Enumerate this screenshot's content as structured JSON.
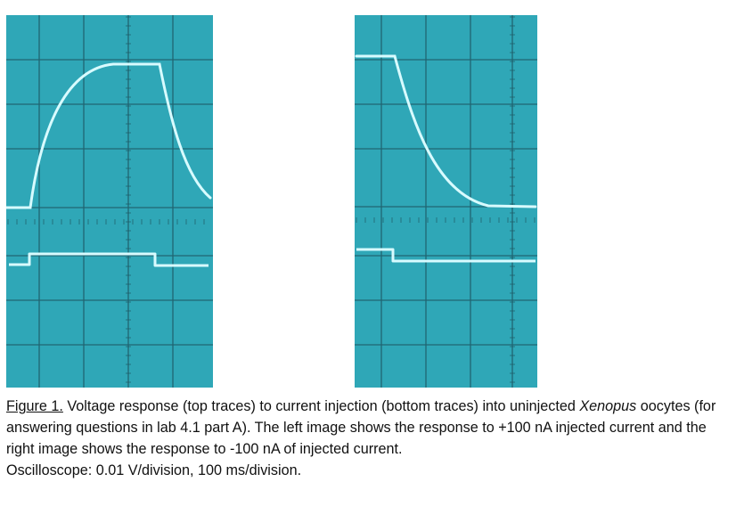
{
  "figure": {
    "label": "Figure 1.",
    "caption_part1": " Voltage response (top traces) to current injection (bottom traces) into uninjected ",
    "species": "Xenopus",
    "caption_part2": " oocytes (for answering questions in lab 4.1 part A). The left image shows the response to +100 nA injected current and the right image shows the response to -100 nA of injected current.",
    "scope_settings": "Oscilloscope: 0.01 V/division, 100 ms/division."
  },
  "colors": {
    "screen": "#2fa7b7",
    "grid": "#1e5a66",
    "trace": "#d8fbff"
  },
  "oscilloscope_images": [
    {
      "name": "positive-current-response",
      "injected_current_nA": 100,
      "voltage_trace": "rising exponential to plateau during pulse, decaying after pulse ends",
      "current_trace": "step up during pulse"
    },
    {
      "name": "negative-current-response",
      "injected_current_nA": -100,
      "voltage_trace": "exponential fall from plateau to baseline after pulse onset",
      "current_trace": "step down at pulse onset"
    }
  ]
}
